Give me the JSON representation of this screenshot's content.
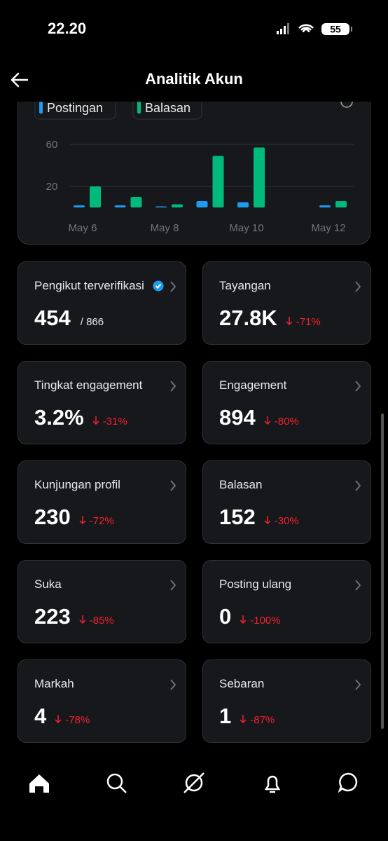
{
  "status_bar": {
    "time": "22.20",
    "battery": "55"
  },
  "header": {
    "title": "Analitik Akun"
  },
  "chart_data": {
    "type": "bar",
    "categories": [
      "May 6",
      null,
      "May 8",
      null,
      "May 10",
      null,
      "May 12"
    ],
    "series": [
      {
        "name": "Postingan",
        "color": "#1d9bf0",
        "values": [
          2,
          2,
          1,
          6,
          5,
          0,
          2
        ]
      },
      {
        "name": "Balasan",
        "color": "#00ba7c",
        "values": [
          20,
          10,
          3,
          49,
          57,
          0,
          6
        ]
      }
    ],
    "ylim": [
      0,
      70
    ],
    "yticks": [
      20,
      60
    ],
    "grid": true
  },
  "cards": [
    {
      "label": "Pengikut terverifikasi",
      "value": "454",
      "total": "/ 866",
      "verified": true
    },
    {
      "label": "Tayangan",
      "value": "27.8K",
      "change": "-71%"
    },
    {
      "label": "Tingkat engagement",
      "value": "3.2%",
      "change": "-31%"
    },
    {
      "label": "Engagement",
      "value": "894",
      "change": "-80%"
    },
    {
      "label": "Kunjungan profil",
      "value": "230",
      "change": "-72%"
    },
    {
      "label": "Balasan",
      "value": "152",
      "change": "-30%"
    },
    {
      "label": "Suka",
      "value": "223",
      "change": "-85%"
    },
    {
      "label": "Posting ulang",
      "value": "0",
      "change": "-100%"
    },
    {
      "label": "Markah",
      "value": "4",
      "change": "-78%"
    },
    {
      "label": "Sebaran",
      "value": "1",
      "change": "-87%"
    }
  ]
}
